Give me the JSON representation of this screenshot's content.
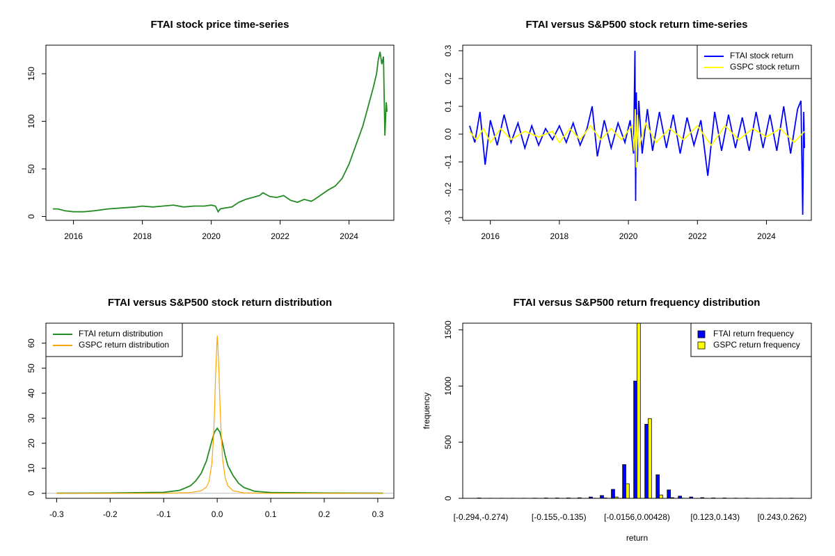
{
  "chart_data": [
    {
      "id": "price",
      "type": "line",
      "title": "FTAI stock price time-series",
      "xlabel": "",
      "ylabel": "",
      "xlim": [
        2015.2,
        2025.3
      ],
      "ylim": [
        -4,
        180
      ],
      "xticks": [
        2016,
        2018,
        2020,
        2022,
        2024
      ],
      "xtick_labels": [
        "2016",
        "2018",
        "2020",
        "2022",
        "2024"
      ],
      "yticks": [
        0,
        50,
        100,
        150
      ],
      "ytick_labels": [
        "0",
        "50",
        "100",
        "150"
      ],
      "grid": false,
      "series": [
        {
          "color": "#228B22",
          "x": [
            2015.4,
            2015.55,
            2015.75,
            2016.0,
            2016.3,
            2016.6,
            2017.0,
            2017.4,
            2017.8,
            2018.0,
            2018.3,
            2018.6,
            2018.9,
            2019.2,
            2019.5,
            2019.8,
            2020.0,
            2020.12,
            2020.2,
            2020.26,
            2020.4,
            2020.6,
            2020.8,
            2021.0,
            2021.2,
            2021.4,
            2021.5,
            2021.7,
            2021.9,
            2022.1,
            2022.3,
            2022.5,
            2022.7,
            2022.9,
            2023.0,
            2023.2,
            2023.4,
            2023.6,
            2023.8,
            2024.0,
            2024.2,
            2024.4,
            2024.55,
            2024.7,
            2024.8,
            2024.85,
            2024.9,
            2024.95,
            2025.0,
            2025.04,
            2025.08,
            2025.1
          ],
          "y": [
            8,
            8,
            6,
            5,
            5,
            6,
            8,
            9,
            10,
            11,
            10,
            11,
            12,
            10,
            11,
            11,
            12,
            11,
            5,
            8,
            9,
            10,
            15,
            18,
            20,
            22,
            25,
            21,
            20,
            22,
            17,
            15,
            18,
            16,
            18,
            23,
            28,
            32,
            40,
            55,
            75,
            95,
            115,
            135,
            150,
            165,
            173,
            160,
            168,
            85,
            120,
            110
          ]
        }
      ]
    },
    {
      "id": "returns",
      "type": "line",
      "title": "FTAI versus S&P500 stock return time-series",
      "xlabel": "",
      "ylabel": "",
      "xlim": [
        2015.2,
        2025.3
      ],
      "ylim": [
        -0.31,
        0.32
      ],
      "xticks": [
        2016,
        2018,
        2020,
        2022,
        2024
      ],
      "xtick_labels": [
        "2016",
        "2018",
        "2020",
        "2022",
        "2024"
      ],
      "yticks": [
        -0.3,
        -0.2,
        -0.1,
        0.0,
        0.1,
        0.2,
        0.3
      ],
      "ytick_labels": [
        "-0.3",
        "-0.2",
        "-0.1",
        "0.0",
        "0.1",
        "0.2",
        "0.3"
      ],
      "grid": false,
      "legend_position": "top-right",
      "series": [
        {
          "name": "FTAI stock return",
          "color": "#0000FF",
          "x": [
            2015.4,
            2015.55,
            2015.7,
            2015.85,
            2016.0,
            2016.2,
            2016.4,
            2016.6,
            2016.8,
            2017.0,
            2017.2,
            2017.4,
            2017.6,
            2017.8,
            2018.0,
            2018.2,
            2018.4,
            2018.6,
            2018.8,
            2018.95,
            2019.1,
            2019.3,
            2019.5,
            2019.7,
            2019.9,
            2020.05,
            2020.15,
            2020.19,
            2020.21,
            2020.23,
            2020.26,
            2020.3,
            2020.4,
            2020.55,
            2020.7,
            2020.9,
            2021.1,
            2021.3,
            2021.5,
            2021.7,
            2021.9,
            2022.1,
            2022.3,
            2022.5,
            2022.7,
            2022.9,
            2023.1,
            2023.3,
            2023.5,
            2023.7,
            2023.9,
            2024.1,
            2024.3,
            2024.5,
            2024.7,
            2024.9,
            2025.0,
            2025.05,
            2025.08,
            2025.1
          ],
          "y": [
            0.03,
            -0.03,
            0.08,
            -0.11,
            0.05,
            -0.04,
            0.07,
            -0.03,
            0.04,
            -0.05,
            0.03,
            -0.04,
            0.02,
            -0.02,
            0.03,
            -0.03,
            0.04,
            -0.04,
            0.02,
            0.1,
            -0.08,
            0.05,
            -0.05,
            0.04,
            -0.03,
            0.05,
            -0.07,
            0.3,
            -0.24,
            0.15,
            -0.1,
            0.12,
            -0.07,
            0.09,
            -0.06,
            0.08,
            -0.05,
            0.07,
            -0.07,
            0.06,
            -0.04,
            0.05,
            -0.15,
            0.08,
            -0.06,
            0.07,
            -0.05,
            0.06,
            -0.06,
            0.08,
            -0.05,
            0.07,
            -0.06,
            0.1,
            -0.07,
            0.09,
            0.12,
            -0.29,
            0.08,
            -0.05
          ]
        },
        {
          "name": "GSPC stock return",
          "color": "#FFFF00",
          "x": [
            2015.4,
            2015.6,
            2015.8,
            2016.0,
            2016.3,
            2016.6,
            2017.0,
            2017.4,
            2017.8,
            2018.0,
            2018.3,
            2018.6,
            2018.9,
            2019.2,
            2019.5,
            2019.8,
            2020.1,
            2020.17,
            2020.2,
            2020.23,
            2020.26,
            2020.3,
            2020.5,
            2020.8,
            2021.2,
            2021.6,
            2022.0,
            2022.4,
            2022.8,
            2023.2,
            2023.6,
            2024.0,
            2024.4,
            2024.8,
            2025.1
          ],
          "y": [
            0.01,
            -0.02,
            0.02,
            -0.03,
            0.02,
            -0.02,
            0.01,
            -0.01,
            0.01,
            -0.03,
            0.02,
            -0.02,
            0.03,
            -0.02,
            0.02,
            -0.02,
            0.03,
            -0.06,
            0.09,
            -0.12,
            0.07,
            -0.05,
            0.04,
            -0.03,
            0.02,
            -0.02,
            0.03,
            -0.04,
            0.03,
            -0.02,
            0.02,
            -0.01,
            0.02,
            -0.03,
            0.01
          ]
        }
      ]
    },
    {
      "id": "density",
      "type": "line",
      "title": "FTAI versus S&P500 stock return distribution",
      "xlabel": "",
      "ylabel": "",
      "xlim": [
        -0.32,
        0.33
      ],
      "ylim": [
        -2,
        68
      ],
      "xticks": [
        -0.3,
        -0.2,
        -0.1,
        0.0,
        0.1,
        0.2,
        0.3
      ],
      "xtick_labels": [
        "-0.3",
        "-0.2",
        "-0.1",
        "0.0",
        "0.1",
        "0.2",
        "0.3"
      ],
      "yticks": [
        0,
        10,
        20,
        30,
        40,
        50,
        60
      ],
      "ytick_labels": [
        "0",
        "10",
        "20",
        "30",
        "40",
        "50",
        "60"
      ],
      "grid": false,
      "legend_position": "top-left",
      "series": [
        {
          "name": "FTAI return distribution",
          "color": "#228B22",
          "x": [
            -0.3,
            -0.2,
            -0.1,
            -0.07,
            -0.05,
            -0.04,
            -0.03,
            -0.02,
            -0.015,
            -0.01,
            -0.005,
            0.0,
            0.005,
            0.01,
            0.015,
            0.02,
            0.03,
            0.04,
            0.05,
            0.07,
            0.1,
            0.2,
            0.31
          ],
          "y": [
            0.05,
            0.1,
            0.4,
            1.2,
            3.0,
            5.0,
            8.0,
            13.0,
            17.0,
            21.0,
            24.5,
            26.0,
            24.5,
            20.0,
            15.0,
            11.0,
            7.0,
            4.0,
            2.3,
            0.8,
            0.3,
            0.1,
            0.05
          ]
        },
        {
          "name": "GSPC return distribution",
          "color": "#FFA500",
          "x": [
            -0.3,
            -0.1,
            -0.05,
            -0.03,
            -0.02,
            -0.015,
            -0.01,
            -0.007,
            -0.005,
            -0.003,
            -0.001,
            0.0,
            0.001,
            0.003,
            0.005,
            0.007,
            0.01,
            0.015,
            0.02,
            0.03,
            0.05,
            0.1,
            0.31
          ],
          "y": [
            0.0,
            0.0,
            0.3,
            1.0,
            2.5,
            5.0,
            12.0,
            22.0,
            33.0,
            47.0,
            58.0,
            63.0,
            60.0,
            50.0,
            37.0,
            26.0,
            14.0,
            6.0,
            3.0,
            1.0,
            0.2,
            0.0,
            0.0
          ]
        }
      ]
    },
    {
      "id": "histogram",
      "type": "bar",
      "title": "FTAI versus S&P500 return frequency distribution",
      "xlabel": "return",
      "ylabel": "frequency",
      "ylim": [
        0,
        1560
      ],
      "yticks": [
        0,
        500,
        1000,
        1500
      ],
      "ytick_labels": [
        "0",
        "500",
        "1000",
        "1500"
      ],
      "grid": false,
      "legend_position": "top-right",
      "categories_count": 29,
      "category_labels": [
        {
          "index": 0,
          "label": "[-0.294,-0.274)"
        },
        {
          "index": 7,
          "label": "[-0.155,-0.135)"
        },
        {
          "index": 14,
          "label": "[-0.0156,0.00428)"
        },
        {
          "index": 21,
          "label": "[0.123,0.143)"
        },
        {
          "index": 27,
          "label": "[0.243,0.262)"
        }
      ],
      "series": [
        {
          "name": "FTAI return frequency",
          "color": "#0000FF",
          "values": [
            3,
            1,
            1,
            1,
            1,
            2,
            3,
            3,
            4,
            5,
            12,
            25,
            80,
            300,
            1045,
            660,
            210,
            75,
            20,
            12,
            6,
            4,
            3,
            2,
            2,
            1,
            1,
            1,
            2
          ]
        },
        {
          "name": "GSPC return frequency",
          "color": "#FFFF00",
          "values": [
            0,
            0,
            0,
            0,
            0,
            0,
            0,
            0,
            0,
            0,
            1,
            3,
            12,
            130,
            1560,
            710,
            30,
            6,
            1,
            0,
            0,
            0,
            0,
            0,
            0,
            0,
            0,
            0,
            0
          ]
        }
      ]
    }
  ]
}
